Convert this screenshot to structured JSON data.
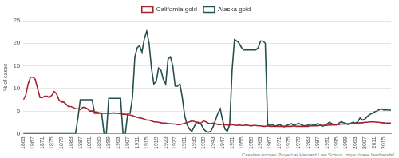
{
  "chart_data": {
    "type": "line",
    "y_label": "% of cases",
    "annotations": [
      "Caselaw Access Project at Harvard Law School. https://case.law/trends/"
    ],
    "legend": "top",
    "grid": true,
    "xlim": [
      1863,
      2018
    ],
    "xticks": [
      1863,
      1867,
      1871,
      1875,
      1879,
      1883,
      1887,
      1891,
      1895,
      1899,
      1903,
      1907,
      1911,
      1915,
      1919,
      1923,
      1927,
      1931,
      1935,
      1939,
      1943,
      1947,
      1951,
      1955,
      1959,
      1963,
      1967,
      1971,
      1975,
      1979,
      1983,
      1987,
      1991,
      1995,
      1999,
      2003,
      2007,
      2011,
      2015
    ],
    "ylim": [
      0,
      25
    ],
    "yticks": [
      0,
      5,
      10,
      15,
      20,
      25
    ],
    "x": [
      1863,
      1864,
      1865,
      1866,
      1867,
      1868,
      1869,
      1870,
      1871,
      1872,
      1873,
      1874,
      1875,
      1876,
      1877,
      1878,
      1879,
      1880,
      1881,
      1882,
      1883,
      1884,
      1885,
      1886,
      1887,
      1888,
      1889,
      1890,
      1891,
      1892,
      1893,
      1894,
      1895,
      1896,
      1897,
      1898,
      1899,
      1900,
      1901,
      1902,
      1903,
      1904,
      1905,
      1906,
      1907,
      1908,
      1909,
      1910,
      1911,
      1912,
      1913,
      1914,
      1915,
      1916,
      1917,
      1918,
      1919,
      1920,
      1921,
      1922,
      1923,
      1924,
      1925,
      1926,
      1927,
      1928,
      1929,
      1930,
      1931,
      1932,
      1933,
      1934,
      1935,
      1936,
      1937,
      1938,
      1939,
      1940,
      1941,
      1942,
      1943,
      1944,
      1945,
      1946,
      1947,
      1948,
      1949,
      1950,
      1951,
      1952,
      1953,
      1954,
      1955,
      1956,
      1957,
      1958,
      1959,
      1960,
      1961,
      1962,
      1963,
      1964,
      1965,
      1966,
      1967,
      1968,
      1969,
      1970,
      1971,
      1972,
      1973,
      1974,
      1975,
      1976,
      1977,
      1978,
      1979,
      1980,
      1981,
      1982,
      1983,
      1984,
      1985,
      1986,
      1987,
      1988,
      1989,
      1990,
      1991,
      1992,
      1993,
      1994,
      1995,
      1996,
      1997,
      1998,
      1999,
      2000,
      2001,
      2002,
      2003,
      2004,
      2005,
      2006,
      2007,
      2008,
      2009,
      2010,
      2011,
      2012,
      2013,
      2014,
      2015,
      2016,
      2017,
      2018
    ],
    "series": [
      {
        "name": "California gold",
        "color": "#a3222c",
        "values": [
          7.5,
          8.5,
          11,
          12.5,
          12.5,
          12,
          10,
          8,
          8,
          8.3,
          8.3,
          8,
          8.5,
          9.3,
          8.8,
          7.5,
          7,
          7,
          6.5,
          6,
          6,
          5.8,
          5.5,
          5.5,
          5.3,
          5.8,
          5.8,
          5.5,
          5,
          5,
          4.8,
          4.8,
          4.6,
          4.5,
          4.5,
          4.5,
          4.5,
          4.5,
          4.6,
          4.5,
          4.5,
          4.4,
          4.3,
          4.3,
          4.2,
          4.1,
          4,
          3.8,
          3.6,
          3.5,
          3.4,
          3.2,
          3,
          3,
          2.8,
          2.6,
          2.6,
          2.5,
          2.4,
          2.3,
          2.3,
          2.2,
          2.2,
          2.1,
          2.1,
          2,
          2,
          2.1,
          2.3,
          2.4,
          2.6,
          2.8,
          2.7,
          2.5,
          2.3,
          2.4,
          2.8,
          2.6,
          2.3,
          2.2,
          2.3,
          2.2,
          2,
          2,
          2.1,
          2,
          1.9,
          1.9,
          2,
          1.9,
          1.8,
          1.9,
          1.8,
          1.8,
          1.9,
          1.8,
          1.7,
          1.8,
          1.8,
          1.7,
          1.7,
          1.6,
          1.6,
          1.7,
          1.6,
          1.6,
          1.7,
          1.6,
          1.6,
          1.6,
          1.6,
          1.6,
          1.6,
          1.6,
          1.7,
          1.6,
          1.6,
          1.6,
          1.6,
          1.6,
          1.6,
          1.7,
          1.7,
          1.7,
          1.7,
          1.8,
          1.8,
          1.8,
          1.8,
          1.9,
          1.9,
          1.9,
          2,
          2,
          2.1,
          2.1,
          2.1,
          2.2,
          2.2,
          2.2,
          2.3,
          2.3,
          2.4,
          2.4,
          2.5,
          2.5,
          2.6,
          2.6,
          2.6,
          2.5,
          2.5,
          2.4,
          2.4,
          2.3,
          2.3,
          2.3
        ]
      },
      {
        "name": "Alaska gold",
        "color": "#244f4f",
        "values": [
          0,
          0,
          0,
          0,
          0,
          0,
          0,
          0,
          0,
          0,
          0,
          0,
          0,
          0,
          0,
          0,
          0,
          0,
          0,
          0,
          0,
          0,
          0,
          3.5,
          7.5,
          7.5,
          7.5,
          7.5,
          7.5,
          7.5,
          4.5,
          4.5,
          4.5,
          4.5,
          0,
          0,
          7.8,
          7.8,
          7.8,
          7.8,
          7.8,
          7.8,
          0,
          0,
          4.5,
          4.5,
          8,
          17,
          19,
          19.5,
          18,
          21,
          22.7,
          20,
          14.5,
          11,
          11.5,
          14.5,
          14,
          12,
          11,
          16.5,
          17,
          15,
          10.5,
          10.5,
          11,
          8,
          4,
          2,
          1,
          0.5,
          1.5,
          2.5,
          2.5,
          2,
          1,
          0.5,
          0.3,
          0.5,
          1.5,
          3,
          4.5,
          5.5,
          3,
          1,
          0.5,
          2,
          14,
          20.8,
          20.5,
          20,
          19,
          18.5,
          18.5,
          18.5,
          18.5,
          18.5,
          18.5,
          19,
          20.5,
          20.5,
          20,
          2,
          1.8,
          2,
          1.5,
          1.8,
          2,
          1.7,
          1.5,
          1.8,
          2,
          2.2,
          1.8,
          2,
          2.3,
          2,
          1.8,
          1.7,
          1.9,
          2.1,
          2,
          1.8,
          2.2,
          2,
          1.6,
          1.8,
          2.1,
          2.5,
          2.2,
          2,
          1.9,
          2.3,
          2.6,
          2.4,
          2.2,
          2,
          2.3,
          2.5,
          2.3,
          2.6,
          3.5,
          3,
          3.2,
          3.8,
          4.2,
          4.5,
          4.8,
          5,
          5.3,
          5.5,
          5.2,
          5.3,
          5.2,
          5.2
        ]
      }
    ]
  }
}
